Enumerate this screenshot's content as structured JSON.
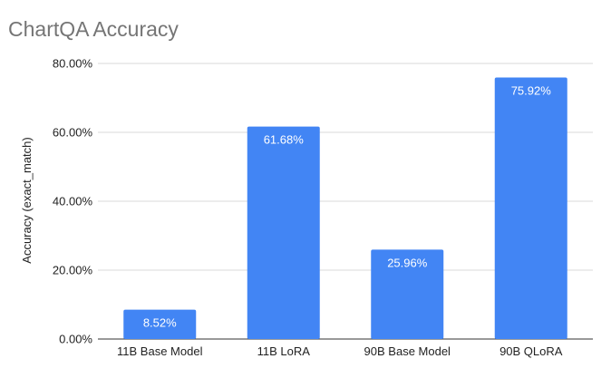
{
  "chart_data": {
    "type": "bar",
    "title": "ChartQA Accuracy",
    "xlabel": "",
    "ylabel": "Accuracy (exact_match)",
    "categories": [
      "11B Base Model",
      "11B LoRA",
      "90B Base Model",
      "90B QLoRA"
    ],
    "values": [
      8.52,
      61.68,
      25.96,
      75.92
    ],
    "data_labels": [
      "8.52%",
      "61.68%",
      "25.96%",
      "75.92%"
    ],
    "ylim": [
      0,
      80
    ],
    "yticks": [
      0,
      20,
      40,
      60,
      80
    ],
    "ytick_labels": [
      "0.00%",
      "20.00%",
      "40.00%",
      "60.00%",
      "80.00%"
    ],
    "grid": true,
    "legend": "none",
    "colors": {
      "bar": "#4285f4",
      "grid": "#d9d9d9",
      "axis": "#333333",
      "title": "#757575"
    }
  }
}
